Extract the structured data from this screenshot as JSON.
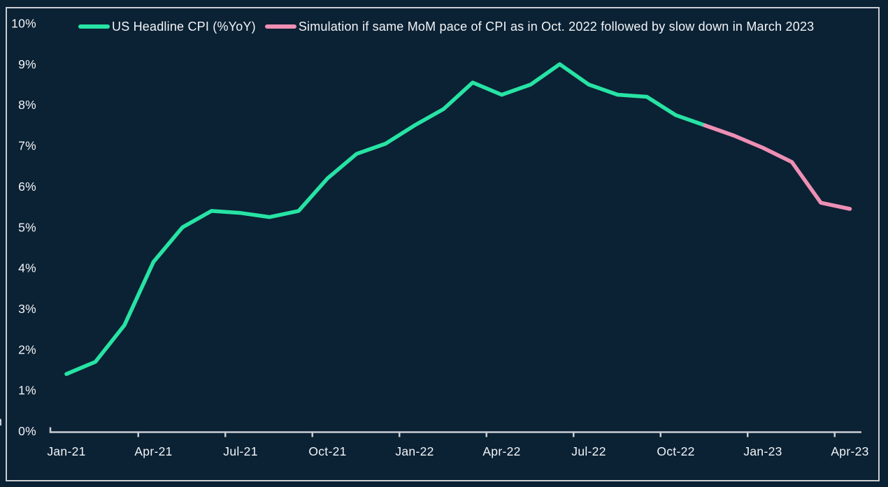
{
  "page": {
    "background_color": "#0B2134",
    "frame_color": "#C9CED3",
    "axis_color": "#C9CED3",
    "text_color": "#F2F5F7",
    "clipped_left_edge_text": "n"
  },
  "legend": [
    {
      "label": "US Headline CPI (%YoY)",
      "color": "#27E3A4"
    },
    {
      "label": "Simulation if same MoM pace of CPI as in Oct. 2022 followed by slow down in March 2023",
      "color": "#EE8FB4"
    }
  ],
  "chart_data": {
    "type": "line",
    "title": "",
    "xlabel": "",
    "ylabel": "",
    "ylim": [
      0,
      10
    ],
    "grid": false,
    "legend_position": "top-left",
    "y_tick_labels": [
      "0%",
      "1%",
      "2%",
      "3%",
      "4%",
      "5%",
      "6%",
      "7%",
      "8%",
      "9%",
      "10%"
    ],
    "x_tick_labels": [
      "Jan-21",
      "Apr-21",
      "Jul-21",
      "Oct-21",
      "Jan-22",
      "Apr-22",
      "Jul-22",
      "Oct-22",
      "Jan-23",
      "Apr-23"
    ],
    "x_range_months": [
      "Jan-21",
      "Apr-23"
    ],
    "series": [
      {
        "name": "US Headline CPI (%YoY)",
        "color": "#27E3A4",
        "start_index": 0,
        "months": [
          "Jan-21",
          "Feb-21",
          "Mar-21",
          "Apr-21",
          "May-21",
          "Jun-21",
          "Jul-21",
          "Aug-21",
          "Sep-21",
          "Oct-21",
          "Nov-21",
          "Dec-21",
          "Jan-22",
          "Feb-22",
          "Mar-22",
          "Apr-22",
          "May-22",
          "Jun-22",
          "Jul-22",
          "Aug-22",
          "Sep-22",
          "Oct-22",
          "Nov-22"
        ],
        "values": [
          1.4,
          1.7,
          2.6,
          4.15,
          5.0,
          5.4,
          5.35,
          5.25,
          5.4,
          6.2,
          6.8,
          7.05,
          7.5,
          7.9,
          8.55,
          8.25,
          8.5,
          9.0,
          8.5,
          8.25,
          8.2,
          7.75,
          7.5
        ]
      },
      {
        "name": "Simulation if same MoM pace of CPI as in Oct. 2022 followed by slow down in March 2023",
        "color": "#EE8FB4",
        "start_index": 22,
        "months": [
          "Nov-22",
          "Dec-22",
          "Jan-23",
          "Feb-23",
          "Mar-23",
          "Apr-23"
        ],
        "values": [
          7.5,
          7.25,
          6.95,
          6.6,
          5.6,
          5.45
        ]
      }
    ]
  }
}
